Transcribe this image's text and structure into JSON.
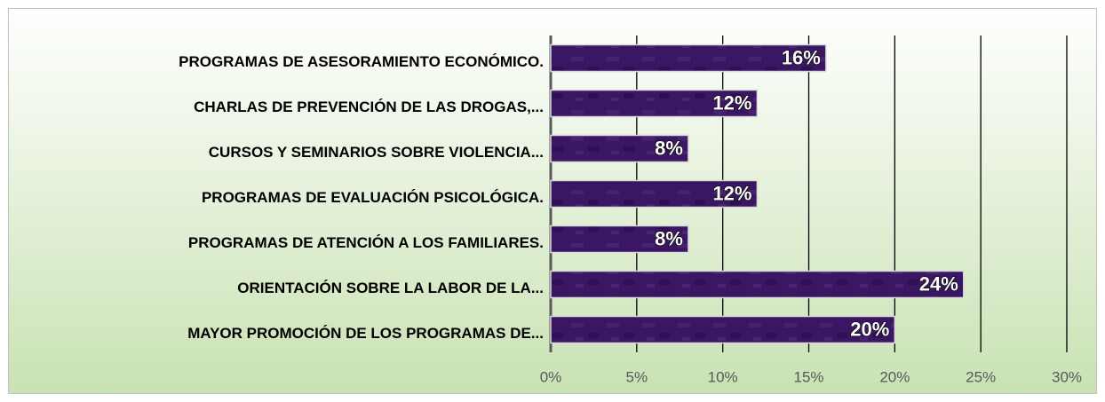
{
  "chart_data": {
    "type": "bar",
    "orientation": "horizontal",
    "categories": [
      "PROGRAMAS DE ASESORAMIENTO ECONÓMICO.",
      "CHARLAS DE PREVENCIÓN DE LAS DROGAS,...",
      "CURSOS Y SEMINARIOS SOBRE VIOLENCIA...",
      "PROGRAMAS DE EVALUACIÓN PSICOLÓGICA.",
      "PROGRAMAS DE ATENCIÓN A LOS FAMILIARES.",
      "ORIENTACIÓN SOBRE LA LABOR DE LA...",
      "MAYOR PROMOCIÓN DE LOS PROGRAMAS DE..."
    ],
    "values": [
      16,
      12,
      8,
      12,
      8,
      24,
      20
    ],
    "value_labels": [
      "16%",
      "12%",
      "8%",
      "12%",
      "8%",
      "24%",
      "20%"
    ],
    "color": "#3b1763",
    "xlim": [
      0,
      30
    ],
    "xticks": [
      {
        "value": 0,
        "label": "0%"
      },
      {
        "value": 5,
        "label": "5%"
      },
      {
        "value": 10,
        "label": "10%"
      },
      {
        "value": 15,
        "label": "15%"
      },
      {
        "value": 20,
        "label": "20%"
      },
      {
        "value": 25,
        "label": "25%"
      },
      {
        "value": 30,
        "label": "30%"
      }
    ],
    "grid": true
  }
}
